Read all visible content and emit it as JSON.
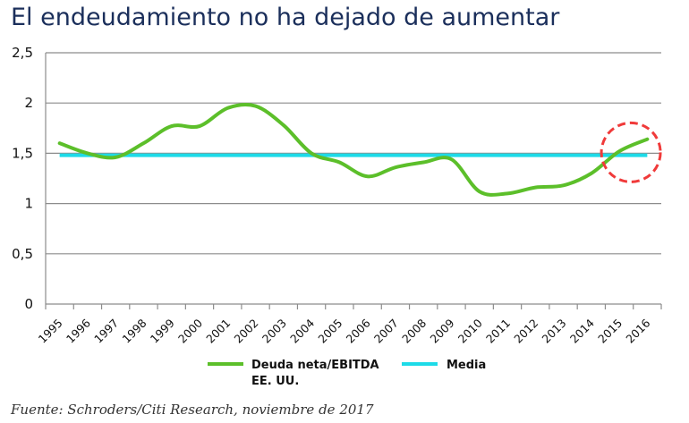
{
  "title": "El endeudamiento no ha dejado de aumentar",
  "source": "Fuente: Schroders/Citi Research, noviembre de 2017",
  "chart_data": {
    "type": "line",
    "title": "El endeudamiento no ha dejado de aumentar",
    "categories": [
      "1995",
      "1996",
      "1997",
      "1998",
      "1999",
      "2000",
      "2001",
      "2002",
      "2003",
      "2004",
      "2005",
      "2006",
      "2007",
      "2008",
      "2009",
      "2010",
      "2011",
      "2012",
      "2013",
      "2014",
      "2015",
      "2016"
    ],
    "yticks": [
      "0",
      "0,5",
      "1",
      "1,5",
      "2",
      "2,5"
    ],
    "ylim": [
      0,
      2.5
    ],
    "grid": true,
    "series": [
      {
        "name": "Deuda neta/EBITDA EE. UU.",
        "name_lines": [
          "Deuda neta/EBITDA",
          "EE. UU."
        ],
        "color": "#5cbf2a",
        "values": [
          1.6,
          1.5,
          1.46,
          1.6,
          1.77,
          1.77,
          1.95,
          1.97,
          1.78,
          1.5,
          1.41,
          1.27,
          1.36,
          1.41,
          1.44,
          1.12,
          1.1,
          1.16,
          1.18,
          1.3,
          1.52,
          1.64
        ]
      },
      {
        "name": "Media",
        "color": "#1ddbe8",
        "values_constant": 1.48
      }
    ],
    "annotation": {
      "type": "dashed-circle",
      "color": "#f03a3a",
      "category": "2015",
      "value": 1.5
    },
    "legend": "bottom"
  }
}
